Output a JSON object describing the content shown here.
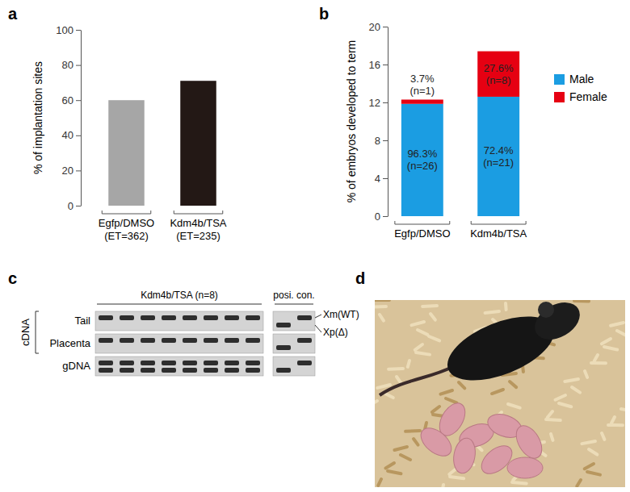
{
  "panels": [
    "a",
    "b",
    "c",
    "d"
  ],
  "chart_data": [
    {
      "type": "bar",
      "ylabel": "% of implantation sites",
      "categories": [
        "Egfp/DMSO\n(ET=362)",
        "Kdm4b/TSA\n(ET=235)"
      ],
      "values": [
        60,
        71
      ],
      "colors": [
        "#a6a6a6",
        "#231815"
      ],
      "ylim": [
        0,
        100
      ],
      "yticks": [
        0,
        20,
        40,
        60,
        80,
        100
      ],
      "grid": false
    },
    {
      "type": "bar",
      "stacked": true,
      "ylabel": "% of embryos developed to term",
      "categories": [
        "Egfp/DMSO",
        "Kdm4b/TSA"
      ],
      "series": [
        {
          "name": "Male",
          "color": "#1b9de2",
          "values": [
            11.85,
            12.6
          ],
          "annotations": [
            "96.3%\n(n=26)",
            "72.4%\n(n=21)"
          ]
        },
        {
          "name": "Female",
          "color": "#e60012",
          "values": [
            0.45,
            4.8
          ],
          "annotations": [
            "3.7%\n(n=1)",
            "27.6%\n(n=8)"
          ]
        }
      ],
      "ylim": [
        0,
        20
      ],
      "yticks": [
        0,
        4,
        8,
        12,
        16,
        20
      ],
      "legend": "right",
      "grid": false
    }
  ],
  "gel": {
    "groups": [
      {
        "label": "Kdm4b/TSA (n=8)",
        "lanes": 8
      },
      {
        "label": "posi. con.",
        "lanes": 2
      }
    ],
    "band_labels": [
      "Xm(WT)",
      "Xp(Δ)"
    ],
    "rows": [
      {
        "label": "Tail",
        "lanes": [
          [
            0
          ],
          [
            0
          ],
          [
            0
          ],
          [
            0
          ],
          [
            0
          ],
          [
            0
          ],
          [
            0
          ],
          [
            0
          ],
          [
            1
          ],
          [
            0
          ]
        ]
      },
      {
        "label": "Placenta",
        "lanes": [
          [
            0
          ],
          [
            0
          ],
          [
            0
          ],
          [
            0
          ],
          [
            0
          ],
          [
            0
          ],
          [
            0
          ],
          [
            0
          ],
          [
            1
          ],
          [
            0
          ]
        ]
      },
      {
        "label": "gDNA",
        "lanes": [
          [
            0,
            1
          ],
          [
            0,
            1
          ],
          [
            0,
            1
          ],
          [
            0,
            1
          ],
          [
            0,
            1
          ],
          [
            0,
            1
          ],
          [
            0,
            1
          ],
          [
            0,
            1
          ],
          [
            1
          ],
          [
            0
          ]
        ]
      }
    ],
    "brackets": [
      {
        "label": "cDNA",
        "rows": [
          0,
          1
        ]
      }
    ]
  }
}
